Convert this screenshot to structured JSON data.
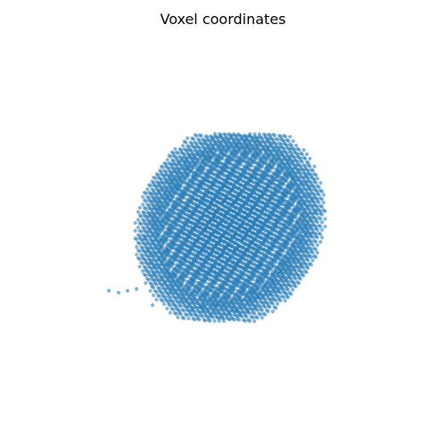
{
  "chart_data": {
    "type": "scatter",
    "projection": "3d",
    "title": "Voxel coordinates",
    "xlabel": "",
    "ylabel": "",
    "zlabel": "",
    "axes_visible": false,
    "grid": false,
    "legend": "none",
    "series": [
      {
        "color": "#1f77b4",
        "marker": "circle",
        "alpha": 0.7,
        "shape": "ellipsoidal point cloud on a regular voxel lattice, viewed obliquely"
      }
    ]
  }
}
